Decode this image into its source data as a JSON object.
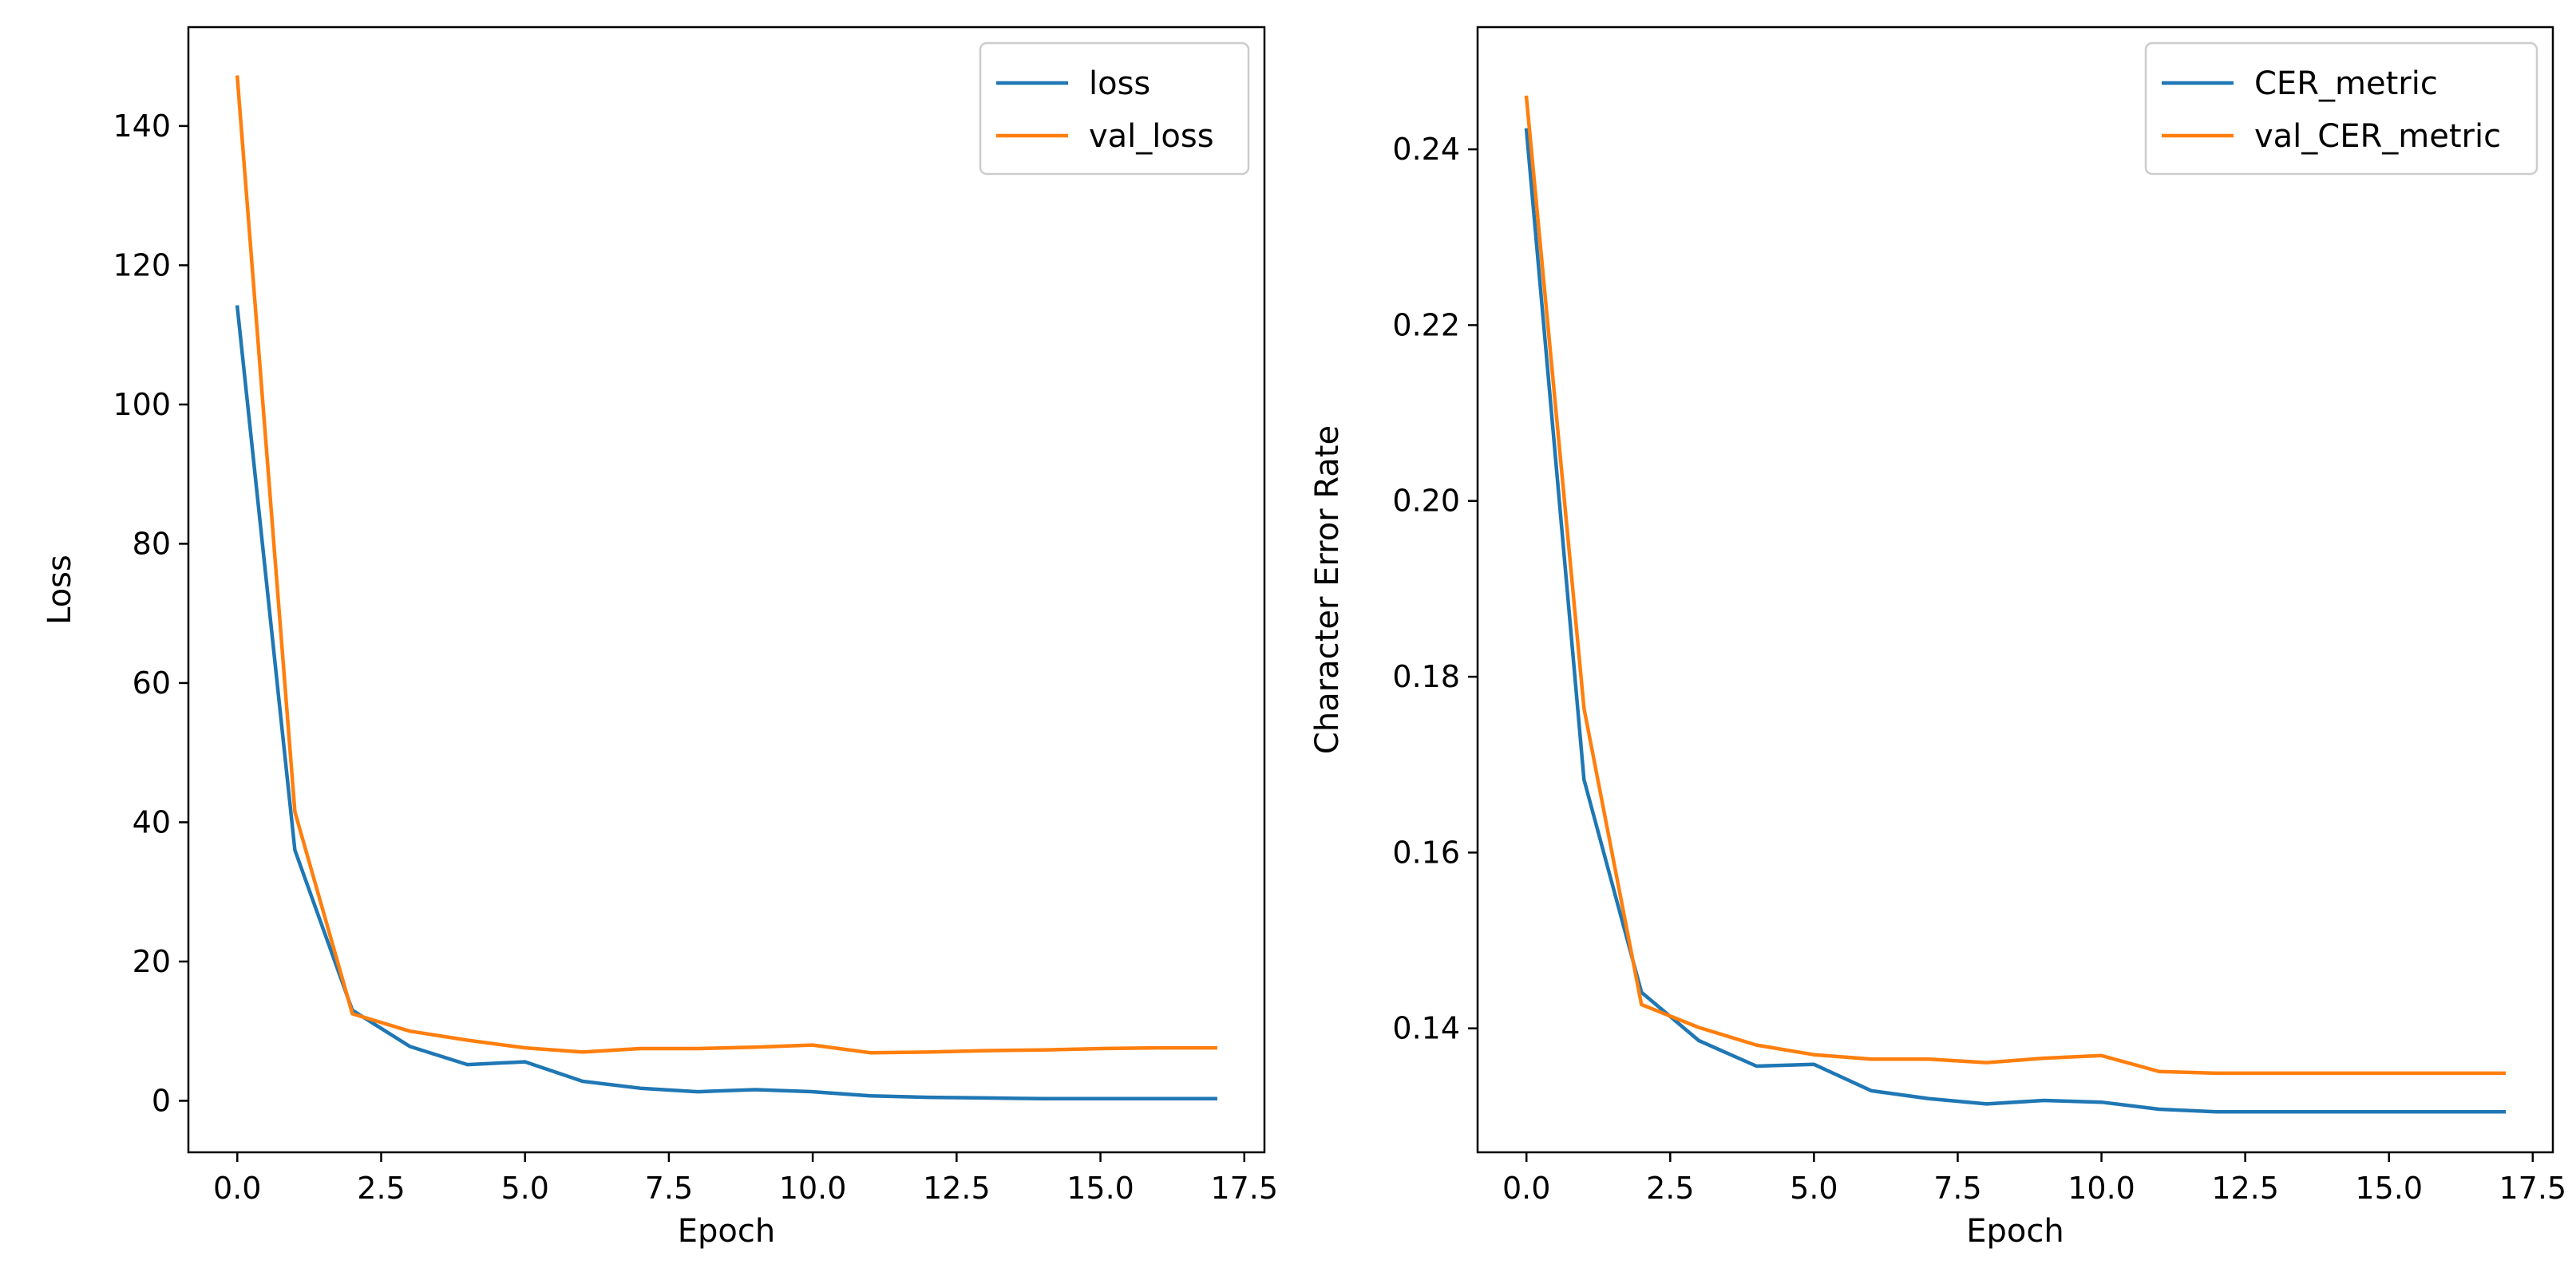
{
  "colors": {
    "series_1": "#1f77b4",
    "series_2": "#ff7f0e",
    "axes": "#000000",
    "legend_border": "#cccccc",
    "background": "#ffffff"
  },
  "chart_data": [
    {
      "type": "line",
      "title": "",
      "xlabel": "Epoch",
      "ylabel": "Loss",
      "xlim": [
        -0.85,
        17.85
      ],
      "ylim": [
        -7.4,
        154.2
      ],
      "xticks": [
        0,
        2.5,
        5,
        7.5,
        10,
        12.5,
        15,
        17.5
      ],
      "xtick_labels": [
        "0.0",
        "2.5",
        "5.0",
        "7.5",
        "10.0",
        "12.5",
        "15.0",
        "17.5"
      ],
      "yticks": [
        0,
        20,
        40,
        60,
        80,
        100,
        120,
        140
      ],
      "ytick_labels": [
        "0",
        "20",
        "40",
        "60",
        "80",
        "100",
        "120",
        "140"
      ],
      "grid": false,
      "legend_position": "top-right",
      "x": [
        0,
        1,
        2,
        3,
        4,
        5,
        6,
        7,
        8,
        9,
        10,
        11,
        12,
        13,
        14,
        15,
        16,
        17
      ],
      "series": [
        {
          "name": "loss",
          "color": "#1f77b4",
          "values": [
            114,
            36,
            13,
            7.8,
            5.2,
            5.6,
            2.8,
            1.8,
            1.3,
            1.6,
            1.3,
            0.7,
            0.5,
            0.4,
            0.3,
            0.3,
            0.3,
            0.3
          ]
        },
        {
          "name": "val_loss",
          "color": "#ff7f0e",
          "values": [
            147,
            41.5,
            12.5,
            10,
            8.7,
            7.6,
            7,
            7.5,
            7.5,
            7.7,
            8,
            6.9,
            7,
            7.2,
            7.3,
            7.5,
            7.6,
            7.6
          ]
        }
      ]
    },
    {
      "type": "line",
      "title": "",
      "xlabel": "Epoch",
      "ylabel": "Character Error Rate",
      "xlim": [
        -0.85,
        17.85
      ],
      "ylim": [
        0.1259,
        0.2539
      ],
      "xticks": [
        0,
        2.5,
        5,
        7.5,
        10,
        12.5,
        15,
        17.5
      ],
      "xtick_labels": [
        "0.0",
        "2.5",
        "5.0",
        "7.5",
        "10.0",
        "12.5",
        "15.0",
        "17.5"
      ],
      "yticks": [
        0.14,
        0.16,
        0.18,
        0.2,
        0.22,
        0.24
      ],
      "ytick_labels": [
        "0.14",
        "0.16",
        "0.18",
        "0.20",
        "0.22",
        "0.24"
      ],
      "grid": false,
      "legend_position": "top-right",
      "x": [
        0,
        1,
        2,
        3,
        4,
        5,
        6,
        7,
        8,
        9,
        10,
        11,
        12,
        13,
        14,
        15,
        16,
        17
      ],
      "series": [
        {
          "name": "CER_metric",
          "color": "#1f77b4",
          "values": [
            0.2422,
            0.1683,
            0.1441,
            0.1386,
            0.1357,
            0.1359,
            0.1329,
            0.132,
            0.1314,
            0.1318,
            0.1316,
            0.1308,
            0.1305,
            0.1305,
            0.1305,
            0.1305,
            0.1305,
            0.1305
          ]
        },
        {
          "name": "val_CER_metric",
          "color": "#ff7f0e",
          "values": [
            0.2459,
            0.1764,
            0.1427,
            0.1401,
            0.1381,
            0.137,
            0.1365,
            0.1365,
            0.1361,
            0.1366,
            0.1369,
            0.1351,
            0.1349,
            0.1349,
            0.1349,
            0.1349,
            0.1349,
            0.1349
          ]
        }
      ]
    }
  ]
}
